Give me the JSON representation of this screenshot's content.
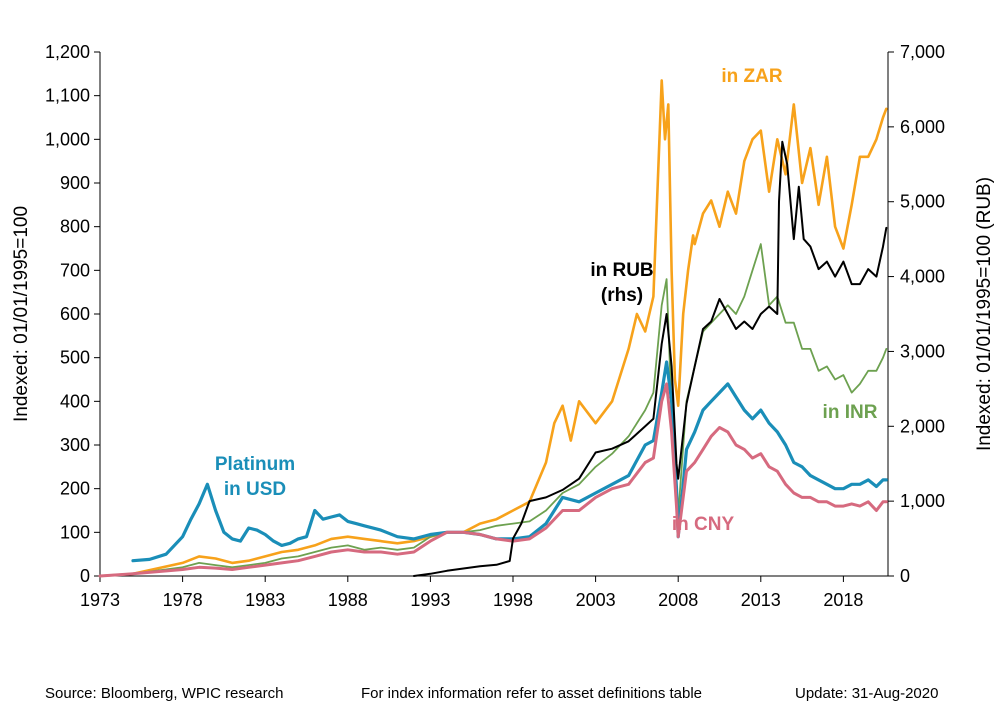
{
  "chart_data": {
    "type": "line",
    "ylabel": "Indexed:  01/01/1995=100",
    "y2label": "Indexed:  01/01/1995=100  (RUB)",
    "ylim": [
      0,
      1200
    ],
    "y2lim": [
      0,
      7000
    ],
    "xlim": [
      1973,
      2020.7
    ],
    "xticks": [
      "1973",
      "1978",
      "1983",
      "1988",
      "1993",
      "1998",
      "2003",
      "2008",
      "2013",
      "2018"
    ],
    "yticks": [
      "0",
      "100",
      "200",
      "300",
      "400",
      "500",
      "600",
      "700",
      "800",
      "900",
      "1,000",
      "1,100",
      "1,200"
    ],
    "y2ticks": [
      "0",
      "1,000",
      "2,000",
      "3,000",
      "4,000",
      "5,000",
      "6,000",
      "7,000"
    ],
    "grid": false,
    "legend": "direct labels",
    "series": [
      {
        "name": "in ZAR",
        "label": "in ZAR",
        "color": "#F7A21B",
        "width": 2.6,
        "axis": "left",
        "x": [
          1973,
          1975,
          1978,
          1979,
          1980,
          1981,
          1982,
          1983,
          1984,
          1985,
          1986,
          1987,
          1988,
          1989,
          1990,
          1991,
          1992,
          1993,
          1994,
          1995,
          1996,
          1997,
          1998,
          1999,
          2000,
          2000.5,
          2001,
          2001.5,
          2002,
          2003,
          2004,
          2005,
          2005.5,
          2006,
          2006.5,
          2007,
          2007.2,
          2007.4,
          2007.6,
          2007.8,
          2008,
          2008.3,
          2008.6,
          2008.9,
          2009,
          2009.5,
          2010,
          2010.5,
          2011,
          2011.5,
          2012,
          2012.5,
          2013,
          2013.5,
          2014,
          2014.5,
          2015,
          2015.5,
          2016,
          2016.5,
          2017,
          2017.5,
          2018,
          2018.5,
          2019,
          2019.5,
          2020,
          2020.4,
          2020.6
        ],
        "y": [
          0,
          5,
          30,
          45,
          40,
          30,
          35,
          45,
          55,
          60,
          70,
          85,
          90,
          85,
          80,
          75,
          80,
          90,
          100,
          100,
          120,
          130,
          150,
          170,
          260,
          350,
          390,
          310,
          400,
          350,
          400,
          520,
          600,
          560,
          640,
          1135,
          1000,
          1080,
          700,
          450,
          390,
          600,
          700,
          780,
          760,
          830,
          860,
          800,
          880,
          830,
          950,
          1000,
          1020,
          880,
          1000,
          920,
          1080,
          900,
          980,
          850,
          960,
          800,
          750,
          850,
          960,
          960,
          1000,
          1050,
          1070
        ]
      },
      {
        "name": "in INR",
        "label": "in INR",
        "color": "#6DA150",
        "width": 1.8,
        "axis": "left",
        "x": [
          1973,
          1975,
          1978,
          1979,
          1980,
          1981,
          1982,
          1983,
          1984,
          1985,
          1986,
          1987,
          1988,
          1989,
          1990,
          1991,
          1992,
          1993,
          1994,
          1995,
          1996,
          1997,
          1998,
          1999,
          2000,
          2001,
          2002,
          2003,
          2004,
          2005,
          2006,
          2006.5,
          2007,
          2007.3,
          2007.6,
          2007.9,
          2008,
          2008.5,
          2009,
          2009.5,
          2010,
          2010.5,
          2011,
          2011.5,
          2012,
          2012.5,
          2013,
          2013.5,
          2014,
          2014.5,
          2015,
          2015.5,
          2016,
          2016.5,
          2017,
          2017.5,
          2018,
          2018.5,
          2019,
          2019.5,
          2020,
          2020.4,
          2020.6
        ],
        "y": [
          0,
          5,
          20,
          30,
          25,
          20,
          25,
          30,
          40,
          45,
          55,
          65,
          70,
          60,
          65,
          60,
          65,
          90,
          100,
          100,
          105,
          115,
          120,
          125,
          150,
          190,
          210,
          250,
          280,
          320,
          380,
          420,
          620,
          680,
          380,
          150,
          140,
          400,
          480,
          560,
          580,
          600,
          620,
          600,
          640,
          700,
          760,
          620,
          640,
          580,
          580,
          520,
          520,
          470,
          480,
          450,
          460,
          420,
          440,
          470,
          470,
          500,
          520
        ]
      },
      {
        "name": "Platinum in USD",
        "label": "Platinum in USD",
        "color": "#1A8EB8",
        "width": 3.2,
        "axis": "left",
        "x": [
          1975,
          1976,
          1977,
          1978,
          1978.5,
          1979,
          1979.5,
          1980,
          1980.5,
          1981,
          1981.5,
          1982,
          1982.5,
          1983,
          1983.5,
          1984,
          1984.5,
          1985,
          1985.5,
          1986,
          1986.5,
          1987,
          1987.5,
          1988,
          1988.5,
          1989,
          1990,
          1991,
          1992,
          1993,
          1994,
          1995,
          1996,
          1997,
          1998,
          1999,
          2000,
          2001,
          2002,
          2003,
          2004,
          2005,
          2006,
          2006.5,
          2007,
          2007.3,
          2007.6,
          2007.9,
          2008,
          2008.5,
          2009,
          2009.5,
          2010,
          2010.5,
          2011,
          2011.5,
          2012,
          2012.5,
          2013,
          2013.5,
          2014,
          2014.5,
          2015,
          2015.5,
          2016,
          2016.5,
          2017,
          2017.5,
          2018,
          2018.5,
          2019,
          2019.5,
          2020,
          2020.4,
          2020.6
        ],
        "y": [
          35,
          38,
          50,
          90,
          130,
          165,
          210,
          150,
          100,
          85,
          80,
          110,
          105,
          95,
          80,
          70,
          75,
          85,
          90,
          150,
          130,
          135,
          140,
          125,
          120,
          115,
          105,
          90,
          85,
          95,
          100,
          100,
          95,
          85,
          85,
          90,
          120,
          180,
          170,
          190,
          210,
          230,
          300,
          310,
          420,
          490,
          400,
          200,
          90,
          290,
          330,
          380,
          400,
          420,
          440,
          410,
          380,
          360,
          380,
          350,
          330,
          300,
          260,
          250,
          230,
          220,
          210,
          200,
          200,
          210,
          210,
          220,
          205,
          220,
          220
        ]
      },
      {
        "name": "in CNY",
        "label": "in CNY",
        "color": "#D66A7F",
        "width": 3.0,
        "axis": "left",
        "x": [
          1973,
          1975,
          1978,
          1979,
          1980,
          1981,
          1982,
          1983,
          1984,
          1985,
          1986,
          1987,
          1988,
          1989,
          1990,
          1991,
          1992,
          1993,
          1994,
          1995,
          1996,
          1997,
          1998,
          1999,
          2000,
          2001,
          2002,
          2003,
          2004,
          2005,
          2006,
          2006.5,
          2007,
          2007.3,
          2007.6,
          2007.9,
          2008,
          2008.5,
          2009,
          2009.5,
          2010,
          2010.5,
          2011,
          2011.5,
          2012,
          2012.5,
          2013,
          2013.5,
          2014,
          2014.5,
          2015,
          2015.5,
          2016,
          2016.5,
          2017,
          2017.5,
          2018,
          2018.5,
          2019,
          2019.5,
          2020,
          2020.4,
          2020.6
        ],
        "y": [
          0,
          5,
          15,
          20,
          18,
          15,
          20,
          25,
          30,
          35,
          45,
          55,
          60,
          55,
          55,
          50,
          55,
          80,
          100,
          100,
          95,
          85,
          80,
          85,
          110,
          150,
          150,
          180,
          200,
          210,
          260,
          270,
          400,
          440,
          330,
          160,
          90,
          240,
          260,
          290,
          320,
          340,
          330,
          300,
          290,
          270,
          280,
          250,
          240,
          210,
          190,
          180,
          180,
          170,
          170,
          160,
          160,
          165,
          160,
          170,
          150,
          170,
          170
        ]
      },
      {
        "name": "in RUB (rhs)",
        "label": "in RUB (rhs)",
        "color": "#000000",
        "width": 2.0,
        "axis": "right",
        "x": [
          1992,
          1993,
          1994,
          1995,
          1996,
          1997,
          1997.8,
          1998,
          1998.5,
          1999,
          2000,
          2001,
          2002,
          2003,
          2004,
          2005,
          2006,
          2006.5,
          2007,
          2007.3,
          2007.6,
          2007.9,
          2008,
          2008.5,
          2009,
          2009.5,
          2010,
          2010.5,
          2011,
          2011.5,
          2012,
          2012.5,
          2013,
          2013.5,
          2014,
          2014.1,
          2014.3,
          2014.6,
          2015,
          2015.3,
          2015.6,
          2016,
          2016.5,
          2017,
          2017.5,
          2018,
          2018.5,
          2019,
          2019.5,
          2020,
          2020.4,
          2020.6
        ],
        "y": [
          0,
          30,
          70,
          100,
          130,
          150,
          200,
          500,
          700,
          1000,
          1050,
          1150,
          1300,
          1650,
          1700,
          1800,
          2000,
          2100,
          3100,
          3500,
          2800,
          1500,
          1300,
          2300,
          2800,
          3300,
          3400,
          3700,
          3500,
          3300,
          3400,
          3300,
          3500,
          3600,
          3500,
          5000,
          5800,
          5500,
          4500,
          5200,
          4500,
          4400,
          4100,
          4200,
          4000,
          4200,
          3900,
          3900,
          4100,
          4000,
          4400,
          4650
        ]
      }
    ],
    "annotations": {
      "platinum_usd": [
        "Platinum",
        "in USD"
      ],
      "rub": [
        "in RUB",
        "(rhs)"
      ],
      "zar": "in ZAR",
      "inr": "in INR",
      "cny": "in CNY"
    }
  },
  "footer": {
    "source": "Source: Bloomberg, WPIC research",
    "index_info": "For index information refer to asset definitions table",
    "update": "Update: 31-Aug-2020"
  }
}
